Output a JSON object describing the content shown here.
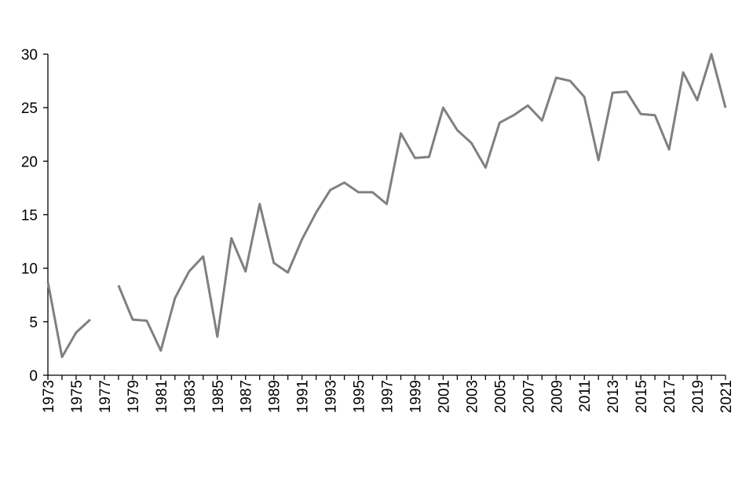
{
  "chart_data": {
    "type": "line",
    "title": "",
    "xlabel": "",
    "ylabel": "",
    "x": [
      1973,
      1974,
      1975,
      1976,
      1977,
      1978,
      1979,
      1980,
      1981,
      1982,
      1983,
      1984,
      1985,
      1986,
      1987,
      1988,
      1989,
      1990,
      1991,
      1992,
      1993,
      1994,
      1995,
      1996,
      1997,
      1998,
      1999,
      2000,
      2001,
      2002,
      2003,
      2004,
      2005,
      2006,
      2007,
      2008,
      2009,
      2010,
      2011,
      2012,
      2013,
      2014,
      2015,
      2016,
      2017,
      2018,
      2019,
      2020,
      2021
    ],
    "x_tick_labels": [
      "1973",
      "1975",
      "1977",
      "1979",
      "1981",
      "1983",
      "1985",
      "1987",
      "1989",
      "1991",
      "1993",
      "1995",
      "1997",
      "1999",
      "2001",
      "2003",
      "2005",
      "2007",
      "2009",
      "2011",
      "2013",
      "2015",
      "2017",
      "2019",
      "2021"
    ],
    "y_tick_labels": [
      "0",
      "5",
      "10",
      "15",
      "20",
      "25",
      "30"
    ],
    "ylim": [
      0,
      30
    ],
    "grid": false,
    "series": [
      {
        "color": "#808080",
        "values": [
          8.7,
          1.7,
          4.0,
          5.2,
          null,
          8.4,
          5.2,
          5.1,
          2.3,
          7.2,
          9.7,
          11.1,
          3.6,
          12.8,
          9.7,
          16.0,
          10.5,
          9.6,
          12.7,
          15.2,
          17.3,
          18.0,
          17.1,
          17.1,
          16.0,
          22.6,
          20.3,
          20.4,
          25.0,
          22.9,
          21.7,
          19.4,
          23.6,
          24.3,
          25.2,
          23.8,
          27.8,
          27.5,
          26.0,
          20.1,
          26.4,
          26.5,
          24.4,
          24.3,
          21.1,
          28.3,
          25.7,
          30.0,
          25.0
        ]
      }
    ]
  }
}
